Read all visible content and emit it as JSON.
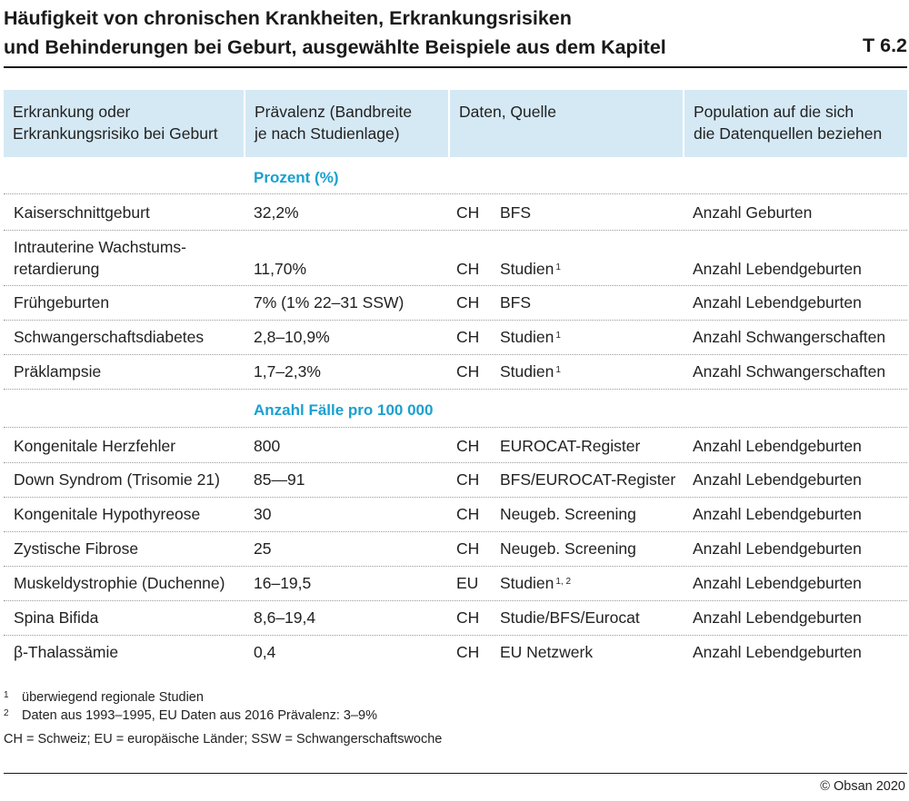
{
  "title": {
    "line1": "Häufigkeit von chronischen Krankheiten, Erkrankungsrisiken",
    "line2": "und Behinderungen bei Geburt, ausgewählte Beispiele aus dem Kapitel",
    "code": "T 6.2"
  },
  "header": {
    "col1": [
      "Erkrankung oder",
      "Erkrankungsrisiko bei Geburt"
    ],
    "col2": [
      "Prävalenz (Bandbreite",
      "je nach Studienlage)"
    ],
    "col3": [
      "Daten, Quelle"
    ],
    "col4": [
      "Population auf die sich",
      "die Datenquellen beziehen"
    ]
  },
  "sections": [
    {
      "label": "Prozent (%)",
      "rows": [
        {
          "name": "Kaiserschnittgeburt",
          "prev": "32,2%",
          "region": "CH",
          "source": "BFS",
          "sup": "",
          "pop": "Anzahl Geburten"
        },
        {
          "name": "Intrauterine Wachstums-",
          "name2": "retardierung",
          "prev": "11,70%",
          "region": "CH",
          "source": "Studien",
          "sup": "1",
          "pop": "Anzahl Lebendgeburten"
        },
        {
          "name": "Frühgeburten",
          "prev": "7% (1% 22–31 SSW)",
          "region": "CH",
          "source": "BFS",
          "sup": "",
          "pop": "Anzahl Lebendgeburten"
        },
        {
          "name": "Schwangerschaftsdiabetes",
          "prev": "2,8–10,9%",
          "region": "CH",
          "source": "Studien",
          "sup": "1",
          "pop": "Anzahl Schwangerschaften"
        },
        {
          "name": "Präklampsie",
          "prev": "1,7–2,3%",
          "region": "CH",
          "source": "Studien",
          "sup": "1",
          "pop": "Anzahl Schwangerschaften"
        }
      ]
    },
    {
      "label": "Anzahl Fälle pro 100 000",
      "rows": [
        {
          "name": "Kongenitale Herzfehler",
          "prev": "800",
          "region": "CH",
          "source": "EUROCAT-Register",
          "sup": "",
          "pop": "Anzahl Lebendgeburten"
        },
        {
          "name": "Down Syndrom (Trisomie 21)",
          "prev": "85—91",
          "region": "CH",
          "source": "BFS/EUROCAT-Register",
          "sup": "",
          "pop": "Anzahl Lebendgeburten"
        },
        {
          "name": "Kongenitale Hypothyreose",
          "prev": "30",
          "region": "CH",
          "source": "Neugeb. Screening",
          "sup": "",
          "pop": "Anzahl Lebendgeburten"
        },
        {
          "name": "Zystische Fibrose",
          "prev": "25",
          "region": "CH",
          "source": "Neugeb. Screening",
          "sup": "",
          "pop": "Anzahl Lebendgeburten"
        },
        {
          "name": "Muskeldystrophie (Duchenne)",
          "prev": "16–19,5",
          "region": "EU",
          "source": "Studien",
          "sup": "1, 2",
          "pop": "Anzahl Lebendgeburten"
        },
        {
          "name": "Spina Bifida",
          "prev": "8,6–19,4",
          "region": "CH",
          "source": "Studie/BFS/Eurocat",
          "sup": "",
          "pop": "Anzahl Lebendgeburten"
        },
        {
          "name": "β-Thalassämie",
          "prev": "0,4",
          "region": "CH",
          "source": "EU Netzwerk",
          "sup": "",
          "pop": "Anzahl Lebendgeburten"
        }
      ]
    }
  ],
  "footnotes": [
    {
      "num": "1",
      "text": "überwiegend regionale Studien"
    },
    {
      "num": "2",
      "text": "Daten aus 1993–1995, EU Daten aus 2016 Prävalenz: 3–9%"
    }
  ],
  "abbreviations": "CH = Schweiz; EU = europäische Länder; SSW = Schwangerschaftswoche",
  "copyright": "© Obsan 2020"
}
